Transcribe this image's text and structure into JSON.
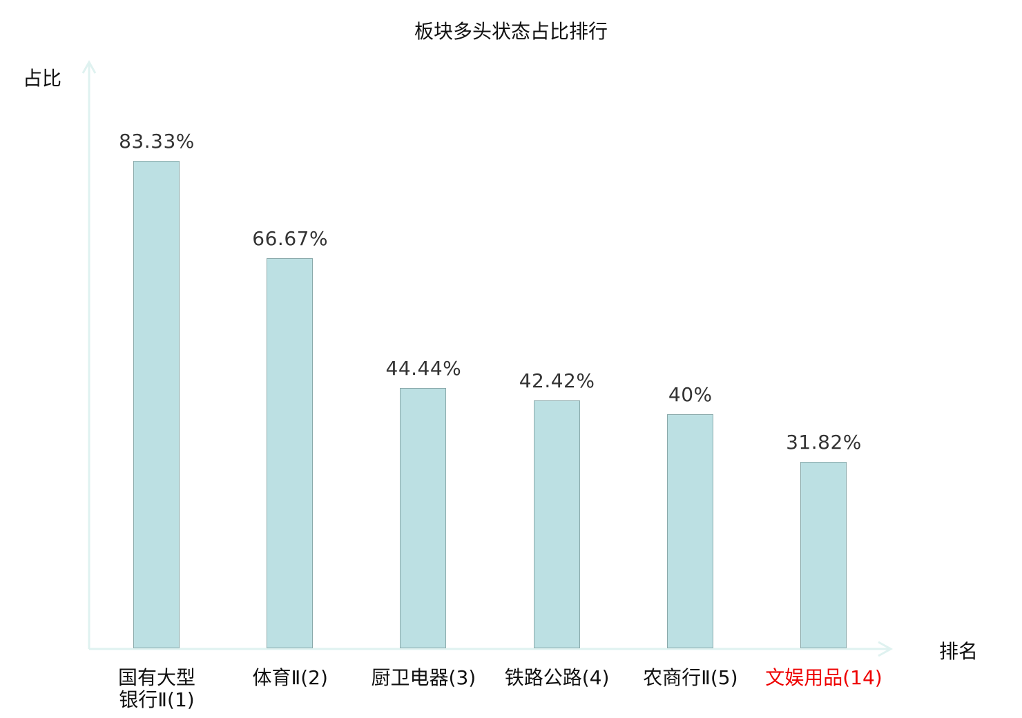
{
  "chart_data": {
    "type": "bar",
    "title": "板块多头状态占比排行",
    "xlabel": "排名",
    "ylabel": "占比",
    "categories": [
      "国有大型\n银行Ⅱ(1)",
      "体育Ⅱ(2)",
      "厨卫电器(3)",
      "铁路公路(4)",
      "农商行Ⅱ(5)",
      "文娱用品(14)"
    ],
    "values": [
      83.33,
      66.67,
      44.44,
      42.42,
      40,
      31.82
    ],
    "value_labels": [
      "83.33%",
      "66.67%",
      "44.44%",
      "42.42%",
      "40%",
      "31.82%"
    ],
    "highlight_index": 5,
    "ylim": [
      0,
      100
    ],
    "grid": false,
    "colors": {
      "bar": "#bce0e3",
      "bar_edge": "#8aa9aa",
      "axis": "#dff2f0",
      "highlight": "#ee0000",
      "text": "#111111"
    }
  }
}
